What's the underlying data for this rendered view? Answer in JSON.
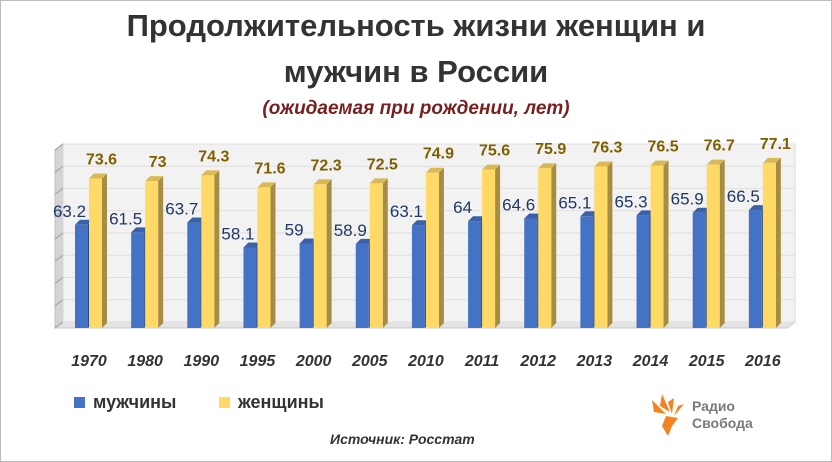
{
  "chart_data": {
    "type": "bar",
    "title_line1": "Продолжительность  жизни женщин и",
    "title_line2": "мужчин в России",
    "subtitle": "(ожидаемая при рождении, лет)",
    "categories": [
      "1970",
      "1980",
      "1990",
      "1995",
      "2000",
      "2005",
      "2010",
      "2011",
      "2012",
      "2013",
      "2014",
      "2015",
      "2016"
    ],
    "series": [
      {
        "name": "мужчины",
        "color": "#4472c4",
        "values": [
          63.2,
          61.5,
          63.7,
          58.1,
          59,
          58.9,
          63.1,
          64,
          64.6,
          65.1,
          65.3,
          65.9,
          66.5
        ]
      },
      {
        "name": "женщины",
        "color": "#ffd966",
        "values": [
          73.6,
          73,
          74.3,
          71.6,
          72.3,
          72.5,
          74.9,
          75.6,
          75.9,
          76.3,
          76.5,
          76.7,
          77.1
        ]
      }
    ],
    "ylim": [
      40,
      80
    ],
    "grid": true,
    "legend": "bottom-left",
    "source": "Источник: Росстат"
  },
  "logo": {
    "line1": "Радио",
    "line2": "Свобода",
    "icon": "radio-svoboda-flame-icon",
    "color": "#f58220"
  }
}
